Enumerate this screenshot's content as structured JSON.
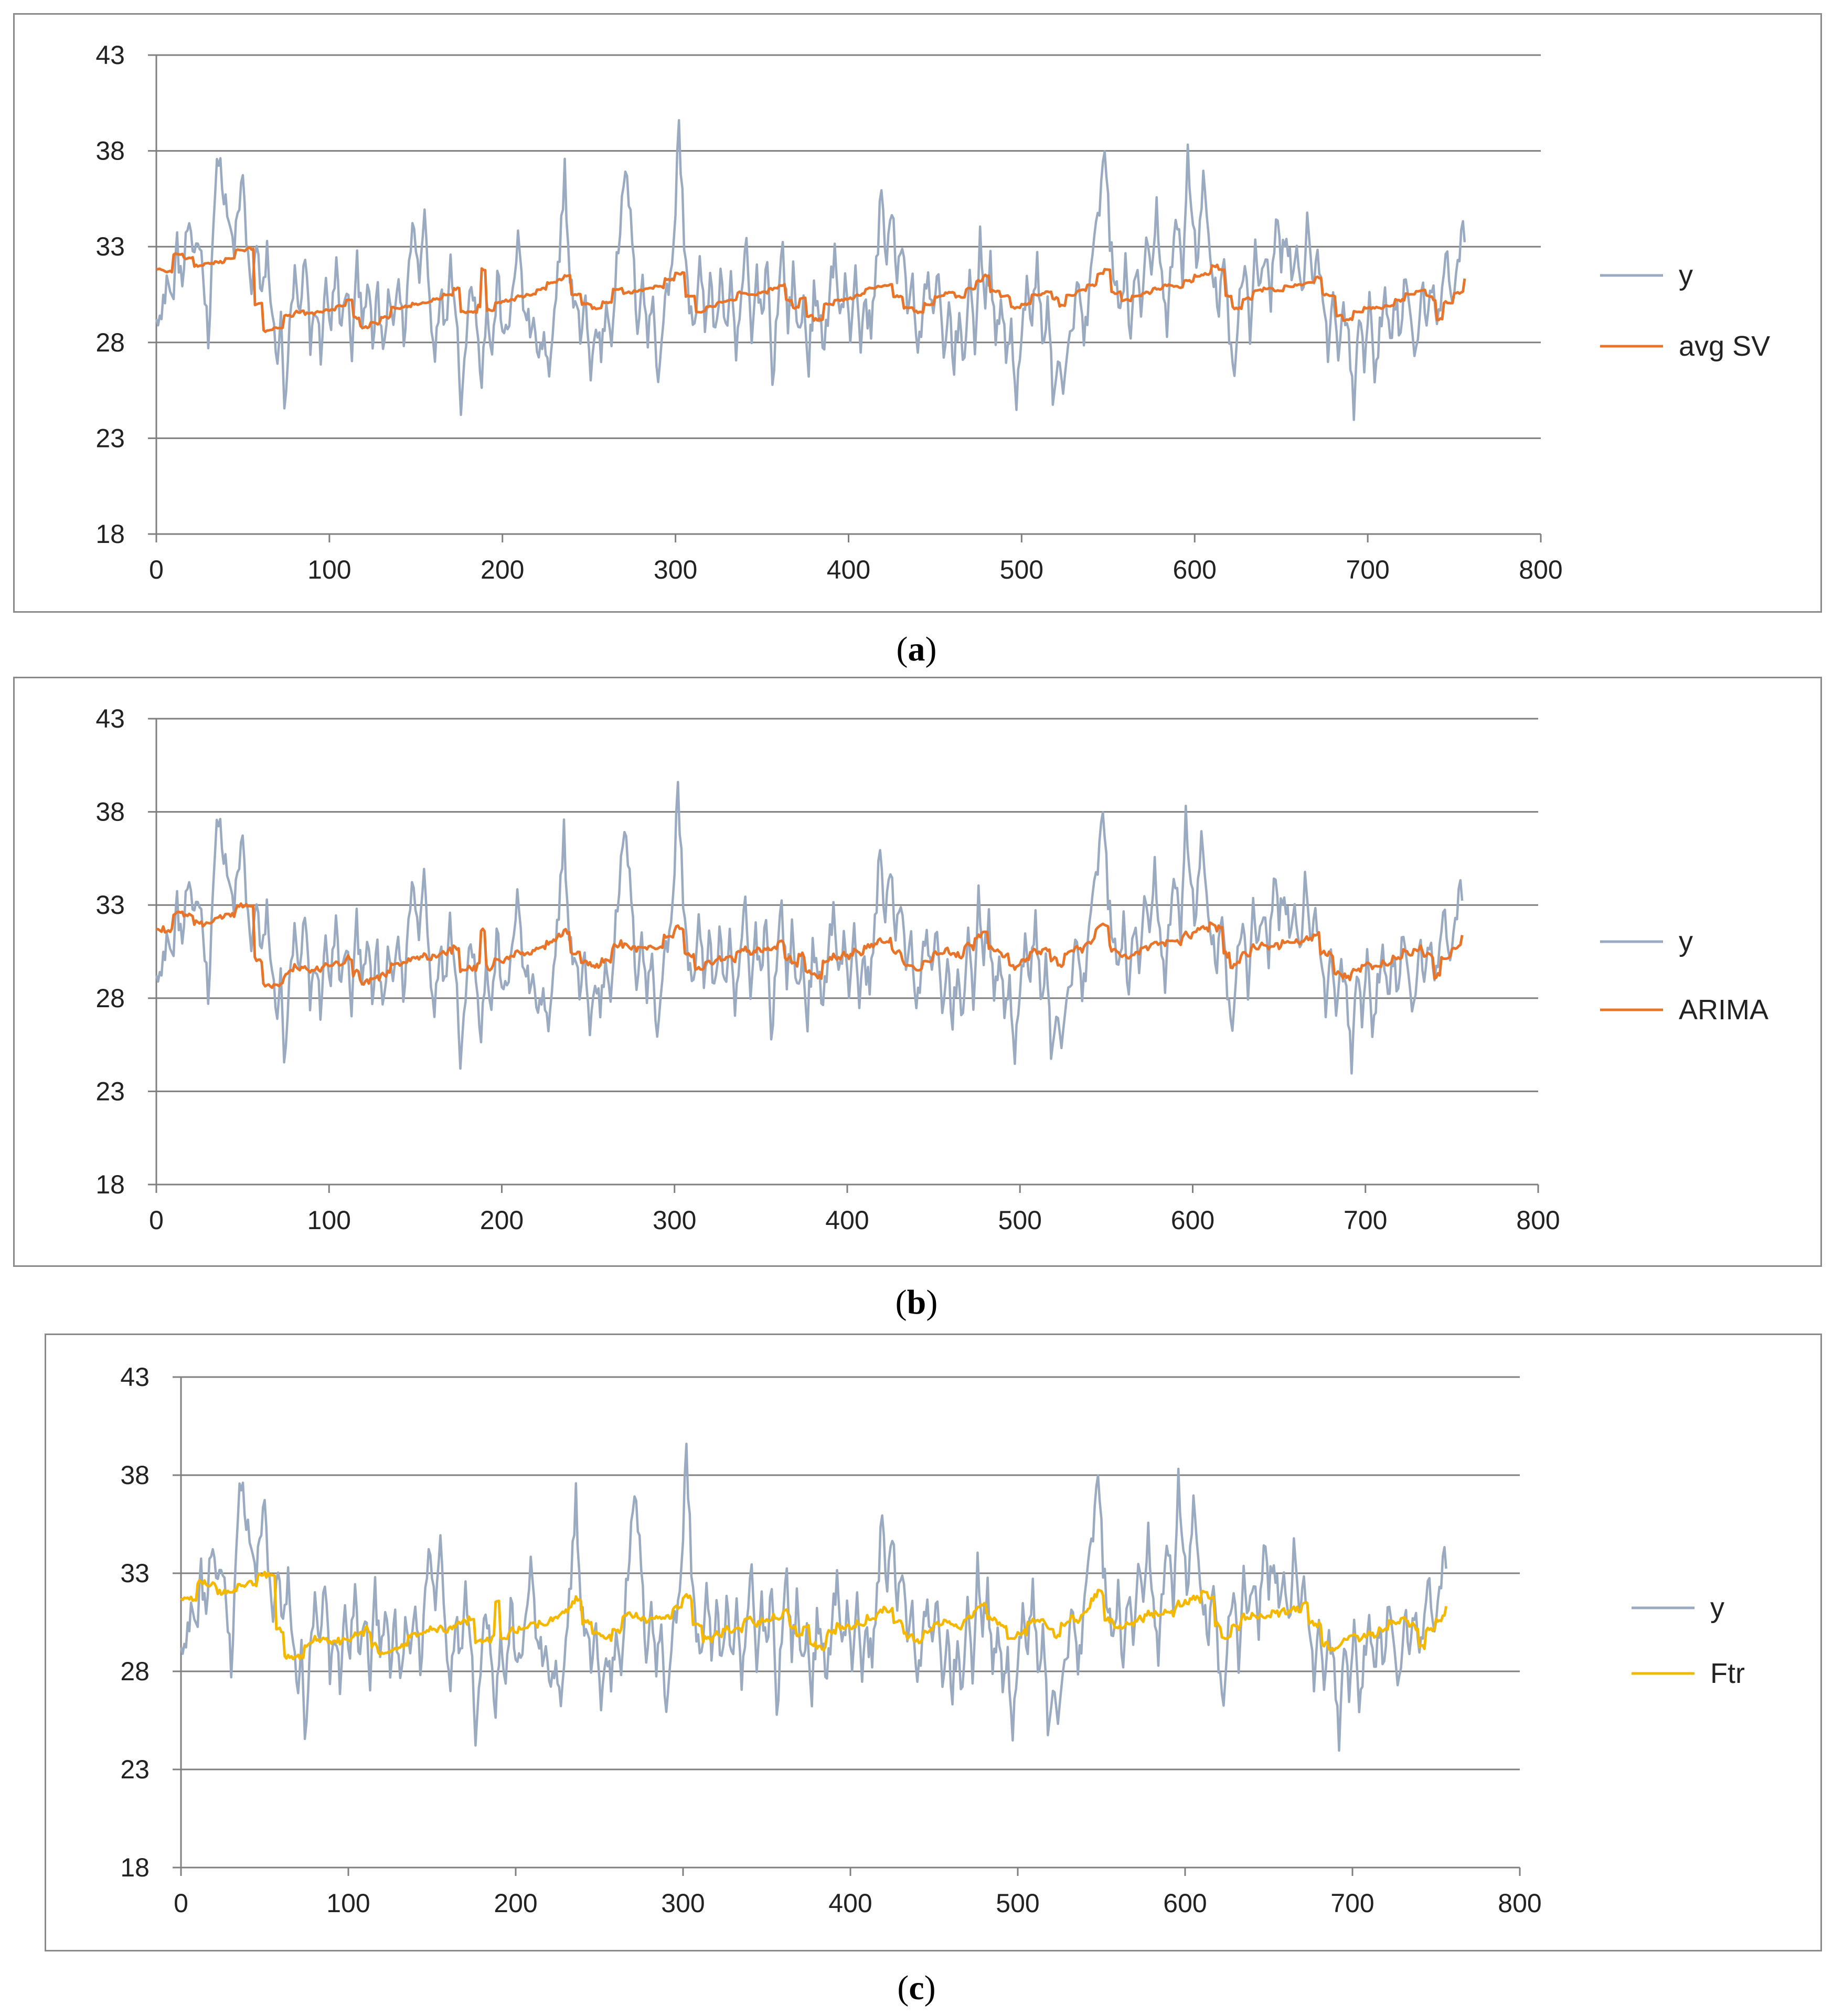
{
  "colors": {
    "observed": "#9AAAC0",
    "avg_sv": "#E8742A",
    "arima": "#E8742A",
    "ftr": "#F5B800",
    "grid": "#7F7F7F",
    "axis": "#7F7F7F"
  },
  "captions": [
    {
      "open": "(",
      "letter": "a",
      "close": ")"
    },
    {
      "open": "(",
      "letter": "b",
      "close": ")"
    },
    {
      "open": "(",
      "letter": "c",
      "close": ")"
    }
  ],
  "chart_data": [
    {
      "id": "a",
      "type": "line",
      "title": "",
      "xlabel": "",
      "ylabel": "",
      "xlim": [
        0,
        800
      ],
      "ylim": [
        18,
        43
      ],
      "x_ticks": [
        0,
        100,
        200,
        300,
        400,
        500,
        600,
        700,
        800
      ],
      "y_ticks": [
        18,
        23,
        28,
        33,
        38,
        43
      ],
      "grid": "horizontal",
      "legend_position": "right",
      "observed_name": "y",
      "model_name": "avg SV",
      "model_color": "#E8742A",
      "model_variant": 0
    },
    {
      "id": "b",
      "type": "line",
      "title": "",
      "xlabel": "",
      "ylabel": "",
      "xlim": [
        0,
        800
      ],
      "ylim": [
        18,
        43
      ],
      "x_ticks": [
        0,
        100,
        200,
        300,
        400,
        500,
        600,
        700,
        800
      ],
      "y_ticks": [
        18,
        23,
        28,
        33,
        38,
        43
      ],
      "grid": "horizontal",
      "legend_position": "right",
      "observed_name": "y",
      "model_name": "ARIMA",
      "model_color": "#E8742A",
      "model_variant": 1
    },
    {
      "id": "c",
      "type": "line",
      "title": "",
      "xlabel": "",
      "ylabel": "",
      "xlim": [
        0,
        800
      ],
      "ylim": [
        18,
        43
      ],
      "x_ticks": [
        0,
        100,
        200,
        300,
        400,
        500,
        600,
        700,
        800
      ],
      "y_ticks": [
        18,
        23,
        28,
        33,
        38,
        43
      ],
      "grid": "horizontal",
      "legend_position": "right",
      "observed_name": "y",
      "model_name": "Ftr",
      "model_color": "#F5B800",
      "model_variant": 2
    }
  ],
  "series": {
    "n_points": 757,
    "observed_anchors": [
      [
        0,
        30.0
      ],
      [
        3,
        29.0
      ],
      [
        6,
        31.5
      ],
      [
        9,
        30.0
      ],
      [
        12,
        33.0
      ],
      [
        15,
        31.0
      ],
      [
        18,
        34.0
      ],
      [
        21,
        32.5
      ],
      [
        24,
        33.5
      ],
      [
        27,
        32.0
      ],
      [
        30,
        28.0
      ],
      [
        33,
        34.5
      ],
      [
        36,
        38.0
      ],
      [
        39,
        35.5
      ],
      [
        42,
        34.0
      ],
      [
        45,
        33.0
      ],
      [
        48,
        35.0
      ],
      [
        50,
        37.0
      ],
      [
        52,
        33.0
      ],
      [
        55,
        31.0
      ],
      [
        58,
        33.0
      ],
      [
        61,
        30.0
      ],
      [
        64,
        33.0
      ],
      [
        67,
        29.0
      ],
      [
        70,
        27.5
      ],
      [
        72,
        29.0
      ],
      [
        74,
        24.5
      ],
      [
        77,
        28.5
      ],
      [
        80,
        31.5
      ],
      [
        83,
        29.0
      ],
      [
        86,
        32.5
      ],
      [
        89,
        28.0
      ],
      [
        92,
        30.0
      ],
      [
        95,
        27.5
      ],
      [
        98,
        31.0
      ],
      [
        101,
        29.0
      ],
      [
        104,
        32.0
      ],
      [
        107,
        28.5
      ],
      [
        110,
        31.0
      ],
      [
        113,
        27.5
      ],
      [
        116,
        32.0
      ],
      [
        119,
        29.5
      ],
      [
        122,
        31.0
      ],
      [
        125,
        28.0
      ],
      [
        128,
        30.5
      ],
      [
        131,
        27.5
      ],
      [
        134,
        30.0
      ],
      [
        137,
        29.0
      ],
      [
        140,
        31.5
      ],
      [
        143,
        28.0
      ],
      [
        146,
        32.0
      ],
      [
        149,
        34.5
      ],
      [
        152,
        31.0
      ],
      [
        155,
        35.0
      ],
      [
        158,
        30.0
      ],
      [
        161,
        27.5
      ],
      [
        164,
        31.0
      ],
      [
        167,
        28.5
      ],
      [
        170,
        32.5
      ],
      [
        173,
        30.0
      ],
      [
        176,
        25.0
      ],
      [
        179,
        28.0
      ],
      [
        182,
        31.5
      ],
      [
        185,
        29.5
      ],
      [
        188,
        26.0
      ],
      [
        191,
        30.0
      ],
      [
        194,
        27.0
      ],
      [
        197,
        31.5
      ],
      [
        200,
        29.0
      ],
      [
        203,
        28.0
      ],
      [
        206,
        31.0
      ],
      [
        209,
        33.5
      ],
      [
        212,
        30.0
      ],
      [
        215,
        29.0
      ],
      [
        218,
        28.5
      ],
      [
        221,
        27.5
      ],
      [
        224,
        28.0
      ],
      [
        227,
        26.0
      ],
      [
        230,
        29.0
      ],
      [
        233,
        33.0
      ],
      [
        236,
        37.0
      ],
      [
        239,
        31.0
      ],
      [
        242,
        30.0
      ],
      [
        245,
        28.5
      ],
      [
        248,
        30.5
      ],
      [
        251,
        26.0
      ],
      [
        254,
        29.0
      ],
      [
        257,
        27.5
      ],
      [
        260,
        30.0
      ],
      [
        263,
        28.5
      ],
      [
        266,
        32.0
      ],
      [
        269,
        35.0
      ],
      [
        272,
        37.0
      ],
      [
        275,
        33.0
      ],
      [
        278,
        29.0
      ],
      [
        281,
        31.5
      ],
      [
        284,
        28.0
      ],
      [
        287,
        30.5
      ],
      [
        290,
        26.0
      ],
      [
        293,
        29.5
      ],
      [
        296,
        31.0
      ],
      [
        299,
        33.0
      ],
      [
        302,
        39.5
      ],
      [
        305,
        33.5
      ],
      [
        308,
        30.0
      ],
      [
        311,
        28.5
      ],
      [
        314,
        32.0
      ],
      [
        317,
        29.0
      ],
      [
        320,
        31.5
      ],
      [
        323,
        28.0
      ],
      [
        326,
        32.0
      ],
      [
        329,
        28.5
      ],
      [
        332,
        31.0
      ],
      [
        335,
        27.0
      ],
      [
        338,
        30.5
      ],
      [
        341,
        33.0
      ],
      [
        344,
        28.0
      ],
      [
        347,
        31.5
      ],
      [
        350,
        29.5
      ],
      [
        353,
        32.5
      ],
      [
        356,
        26.0
      ],
      [
        359,
        30.0
      ],
      [
        362,
        33.0
      ],
      [
        365,
        29.0
      ],
      [
        368,
        31.5
      ],
      [
        371,
        28.5
      ],
      [
        374,
        30.0
      ],
      [
        377,
        27.0
      ],
      [
        380,
        30.5
      ],
      [
        383,
        29.0
      ],
      [
        386,
        28.0
      ],
      [
        389,
        30.5
      ],
      [
        392,
        33.0
      ],
      [
        395,
        29.0
      ],
      [
        398,
        31.0
      ],
      [
        401,
        28.5
      ],
      [
        404,
        32.0
      ],
      [
        407,
        28.0
      ],
      [
        410,
        30.0
      ],
      [
        413,
        28.5
      ],
      [
        416,
        32.0
      ],
      [
        419,
        36.0
      ],
      [
        422,
        32.5
      ],
      [
        425,
        35.0
      ],
      [
        428,
        31.0
      ],
      [
        431,
        33.5
      ],
      [
        434,
        30.0
      ],
      [
        437,
        31.5
      ],
      [
        440,
        27.0
      ],
      [
        443,
        29.5
      ],
      [
        446,
        32.0
      ],
      [
        449,
        29.0
      ],
      [
        452,
        31.5
      ],
      [
        455,
        27.0
      ],
      [
        458,
        30.0
      ],
      [
        461,
        27.0
      ],
      [
        464,
        29.5
      ],
      [
        467,
        27.0
      ],
      [
        470,
        31.0
      ],
      [
        473,
        28.0
      ],
      [
        476,
        33.5
      ],
      [
        479,
        30.0
      ],
      [
        482,
        32.0
      ],
      [
        485,
        28.0
      ],
      [
        488,
        30.5
      ],
      [
        491,
        27.0
      ],
      [
        494,
        29.0
      ],
      [
        497,
        25.0
      ],
      [
        500,
        28.0
      ],
      [
        503,
        31.0
      ],
      [
        506,
        29.5
      ],
      [
        509,
        32.0
      ],
      [
        512,
        28.0
      ],
      [
        515,
        30.0
      ],
      [
        518,
        25.5
      ],
      [
        521,
        27.0
      ],
      [
        524,
        25.0
      ],
      [
        527,
        27.5
      ],
      [
        530,
        29.5
      ],
      [
        533,
        31.0
      ],
      [
        536,
        28.0
      ],
      [
        539,
        30.5
      ],
      [
        542,
        33.0
      ],
      [
        545,
        35.0
      ],
      [
        548,
        38.0
      ],
      [
        551,
        33.5
      ],
      [
        554,
        31.0
      ],
      [
        557,
        29.5
      ],
      [
        560,
        32.0
      ],
      [
        563,
        28.5
      ],
      [
        566,
        31.5
      ],
      [
        569,
        30.0
      ],
      [
        572,
        33.0
      ],
      [
        575,
        31.0
      ],
      [
        578,
        35.0
      ],
      [
        581,
        31.5
      ],
      [
        584,
        29.0
      ],
      [
        587,
        32.5
      ],
      [
        590,
        34.5
      ],
      [
        593,
        31.0
      ],
      [
        596,
        38.0
      ],
      [
        599,
        34.0
      ],
      [
        602,
        32.0
      ],
      [
        605,
        37.0
      ],
      [
        608,
        33.0
      ],
      [
        611,
        31.0
      ],
      [
        614,
        30.0
      ],
      [
        617,
        32.5
      ],
      [
        620,
        28.0
      ],
      [
        623,
        26.0
      ],
      [
        626,
        30.5
      ],
      [
        629,
        32.5
      ],
      [
        632,
        28.5
      ],
      [
        635,
        33.0
      ],
      [
        638,
        31.0
      ],
      [
        641,
        32.5
      ],
      [
        644,
        30.0
      ],
      [
        647,
        35.0
      ],
      [
        650,
        32.0
      ],
      [
        653,
        34.0
      ],
      [
        656,
        31.5
      ],
      [
        659,
        33.0
      ],
      [
        662,
        30.5
      ],
      [
        665,
        34.0
      ],
      [
        668,
        31.0
      ],
      [
        671,
        32.5
      ],
      [
        674,
        30.0
      ],
      [
        677,
        27.5
      ],
      [
        680,
        31.0
      ],
      [
        683,
        26.5
      ],
      [
        686,
        30.0
      ],
      [
        689,
        28.5
      ],
      [
        692,
        24.5
      ],
      [
        695,
        29.0
      ],
      [
        698,
        27.0
      ],
      [
        701,
        31.0
      ],
      [
        704,
        25.5
      ],
      [
        707,
        28.5
      ],
      [
        710,
        31.0
      ],
      [
        713,
        28.0
      ],
      [
        716,
        30.5
      ],
      [
        719,
        28.5
      ],
      [
        722,
        31.5
      ],
      [
        725,
        29.0
      ],
      [
        728,
        27.5
      ],
      [
        731,
        31.0
      ],
      [
        734,
        29.5
      ],
      [
        737,
        31.0
      ],
      [
        740,
        29.0
      ],
      [
        743,
        30.5
      ],
      [
        746,
        32.5
      ],
      [
        749,
        30.0
      ],
      [
        752,
        32.5
      ],
      [
        756,
        34.0
      ]
    ],
    "model_levels": [
      [
        0,
        31.8
      ],
      [
        5,
        31.7
      ],
      [
        10,
        32.6
      ],
      [
        16,
        32.4
      ],
      [
        22,
        32.0
      ],
      [
        28,
        32.1
      ],
      [
        34,
        32.2
      ],
      [
        40,
        32.4
      ],
      [
        46,
        32.8
      ],
      [
        52,
        32.9
      ],
      [
        57,
        30.0
      ],
      [
        62,
        28.6
      ],
      [
        68,
        28.8
      ],
      [
        74,
        29.4
      ],
      [
        80,
        29.6
      ],
      [
        86,
        29.5
      ],
      [
        92,
        29.6
      ],
      [
        98,
        29.7
      ],
      [
        104,
        29.9
      ],
      [
        110,
        30.2
      ],
      [
        114,
        29.3
      ],
      [
        118,
        28.8
      ],
      [
        124,
        29.0
      ],
      [
        130,
        29.3
      ],
      [
        136,
        29.8
      ],
      [
        142,
        29.9
      ],
      [
        148,
        30.0
      ],
      [
        154,
        30.1
      ],
      [
        160,
        30.3
      ],
      [
        166,
        30.5
      ],
      [
        172,
        30.8
      ],
      [
        176,
        29.6
      ],
      [
        180,
        29.6
      ],
      [
        186,
        29.9
      ],
      [
        188,
        31.8
      ],
      [
        191,
        29.7
      ],
      [
        196,
        30.1
      ],
      [
        202,
        30.2
      ],
      [
        208,
        30.4
      ],
      [
        214,
        30.5
      ],
      [
        220,
        30.8
      ],
      [
        226,
        31.1
      ],
      [
        232,
        31.3
      ],
      [
        236,
        31.5
      ],
      [
        240,
        30.5
      ],
      [
        246,
        30.0
      ],
      [
        252,
        29.8
      ],
      [
        258,
        30.1
      ],
      [
        264,
        30.8
      ],
      [
        270,
        30.6
      ],
      [
        276,
        30.7
      ],
      [
        282,
        30.8
      ],
      [
        288,
        30.9
      ],
      [
        294,
        31.3
      ],
      [
        300,
        31.6
      ],
      [
        306,
        30.4
      ],
      [
        312,
        29.6
      ],
      [
        318,
        29.9
      ],
      [
        324,
        30.1
      ],
      [
        330,
        30.2
      ],
      [
        336,
        30.6
      ],
      [
        342,
        30.5
      ],
      [
        348,
        30.6
      ],
      [
        354,
        30.8
      ],
      [
        360,
        31.0
      ],
      [
        364,
        30.2
      ],
      [
        368,
        29.8
      ],
      [
        372,
        30.3
      ],
      [
        376,
        29.4
      ],
      [
        380,
        29.2
      ],
      [
        386,
        30.0
      ],
      [
        392,
        30.2
      ],
      [
        398,
        30.3
      ],
      [
        404,
        30.5
      ],
      [
        410,
        30.8
      ],
      [
        416,
        30.9
      ],
      [
        420,
        31.0
      ],
      [
        426,
        30.4
      ],
      [
        432,
        29.8
      ],
      [
        438,
        29.6
      ],
      [
        444,
        30.0
      ],
      [
        450,
        30.4
      ],
      [
        456,
        30.6
      ],
      [
        462,
        30.4
      ],
      [
        468,
        30.8
      ],
      [
        474,
        31.2
      ],
      [
        478,
        31.5
      ],
      [
        482,
        30.7
      ],
      [
        488,
        30.4
      ],
      [
        494,
        29.8
      ],
      [
        500,
        30.0
      ],
      [
        506,
        30.5
      ],
      [
        512,
        30.6
      ],
      [
        518,
        30.3
      ],
      [
        522,
        29.9
      ],
      [
        526,
        30.5
      ],
      [
        532,
        30.7
      ],
      [
        538,
        31.0
      ],
      [
        544,
        31.6
      ],
      [
        548,
        31.8
      ],
      [
        552,
        30.6
      ],
      [
        558,
        30.2
      ],
      [
        564,
        30.4
      ],
      [
        570,
        30.6
      ],
      [
        576,
        30.8
      ],
      [
        582,
        31.0
      ],
      [
        588,
        30.9
      ],
      [
        594,
        31.2
      ],
      [
        600,
        31.5
      ],
      [
        606,
        31.6
      ],
      [
        610,
        32.0
      ],
      [
        614,
        31.8
      ],
      [
        618,
        30.4
      ],
      [
        622,
        29.8
      ],
      [
        628,
        30.3
      ],
      [
        634,
        30.7
      ],
      [
        640,
        30.8
      ],
      [
        646,
        30.7
      ],
      [
        652,
        30.9
      ],
      [
        658,
        31.0
      ],
      [
        664,
        31.1
      ],
      [
        670,
        31.4
      ],
      [
        674,
        30.5
      ],
      [
        678,
        30.4
      ],
      [
        682,
        29.4
      ],
      [
        686,
        29.2
      ],
      [
        692,
        29.6
      ],
      [
        698,
        29.8
      ],
      [
        704,
        29.8
      ],
      [
        710,
        29.9
      ],
      [
        716,
        30.2
      ],
      [
        722,
        30.5
      ],
      [
        728,
        30.7
      ],
      [
        734,
        30.4
      ],
      [
        738,
        30.2
      ],
      [
        740,
        29.2
      ],
      [
        744,
        30.1
      ],
      [
        750,
        30.6
      ],
      [
        756,
        31.3
      ]
    ]
  }
}
